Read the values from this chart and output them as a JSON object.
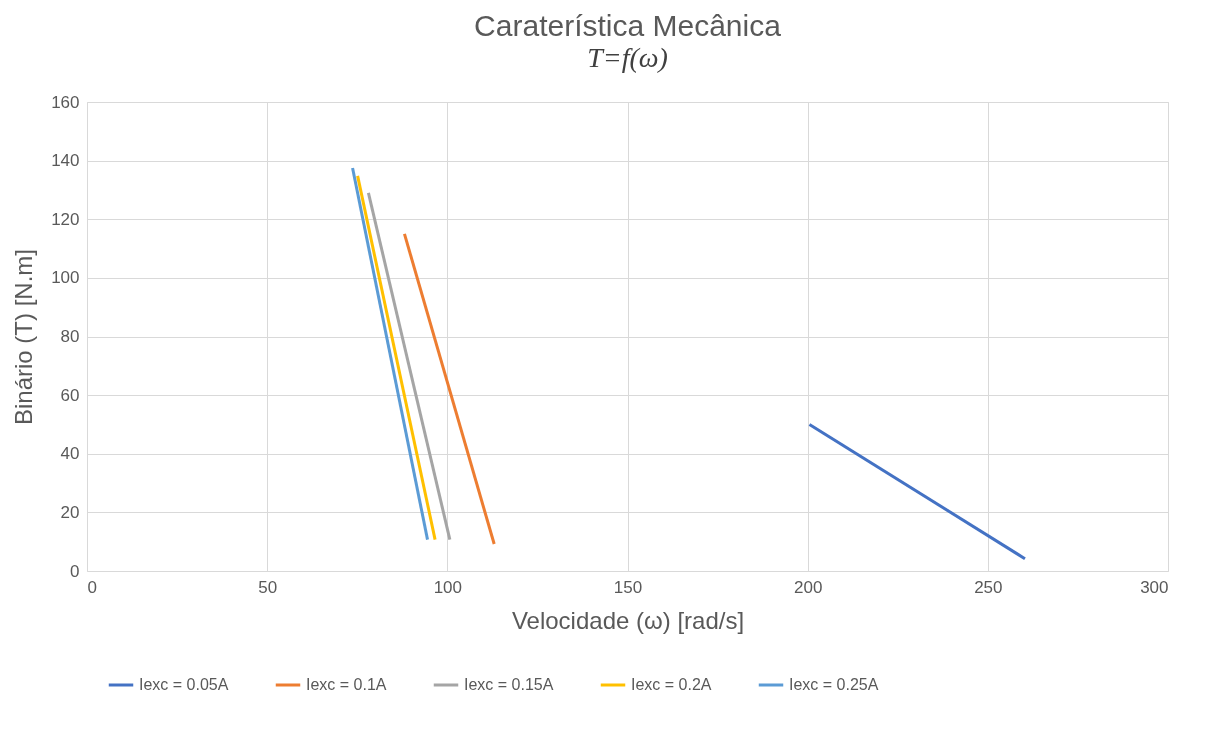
{
  "chart_data": {
    "type": "line",
    "title": "Caraterística Mecânica",
    "subtitle": "T=f(ω)",
    "xlabel": "Velocidade (ω) [rad/s]",
    "ylabel": "Binário (T) [N.m]",
    "series": [
      {
        "name": "Iexc = 0.05A",
        "color": "#4472c4",
        "x": [
          200.5,
          260.3
        ],
        "values": [
          50,
          4.2
        ]
      },
      {
        "name": "Iexc = 0.1A",
        "color": "#ed7d31",
        "x": [
          88.1,
          113
        ],
        "values": [
          115,
          9.2
        ]
      },
      {
        "name": "Iexc = 0.15A",
        "color": "#a5a5a5",
        "x": [
          78.1,
          100.7
        ],
        "values": [
          129,
          10.7
        ]
      },
      {
        "name": "Iexc = 0.2A",
        "color": "#ffc000",
        "x": [
          75.1,
          96.6
        ],
        "values": [
          134.8,
          10.7
        ]
      },
      {
        "name": "Iexc = 0.25A",
        "color": "#5b9bd5",
        "x": [
          73.7,
          94.5
        ],
        "values": [
          137.5,
          10.7
        ]
      }
    ],
    "xlim": [
      0,
      300
    ],
    "xticks": [
      0,
      50,
      100,
      150,
      200,
      250,
      300
    ],
    "ylim": [
      0,
      160
    ],
    "yticks": [
      0,
      20,
      40,
      60,
      80,
      100,
      120,
      140,
      160
    ],
    "grid": true,
    "legend": "bottom",
    "marker": "none",
    "line_style": "solid"
  }
}
